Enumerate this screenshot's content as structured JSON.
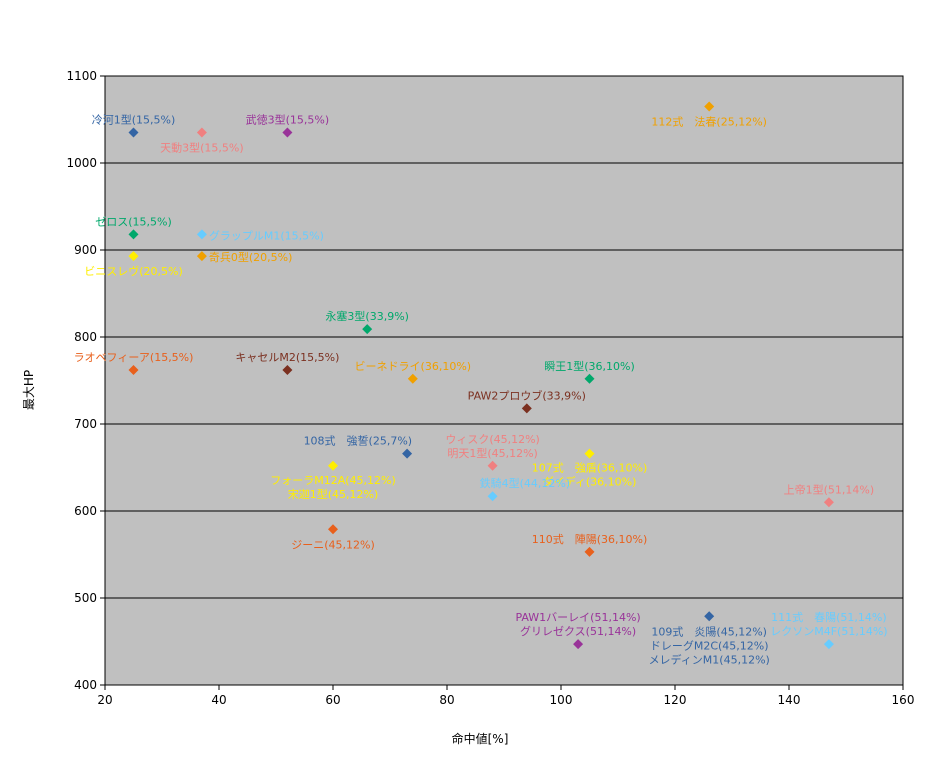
{
  "chart_data": {
    "type": "scatter",
    "title": "",
    "xlabel": "命中値[%]",
    "ylabel": "最大HP",
    "xlim": [
      20,
      160
    ],
    "ylim": [
      400,
      1100
    ],
    "xticks": [
      20,
      40,
      60,
      80,
      100,
      120,
      140,
      160
    ],
    "yticks": [
      400,
      500,
      600,
      700,
      800,
      900,
      1000,
      1100
    ],
    "xtick_labels": [
      "20",
      "40",
      "60",
      "80",
      "100",
      "120",
      "140",
      "160"
    ],
    "ytick_labels": [
      "400",
      "500",
      "600",
      "700",
      "800",
      "900",
      "1000",
      "1100"
    ],
    "grid": "horizontal",
    "background": "#c0c0c0",
    "points": [
      {
        "x": 25,
        "y": 1035,
        "color": "#3465a4",
        "labels": [
          "冷河1型(15,5%)"
        ],
        "pos": "above"
      },
      {
        "x": 37,
        "y": 1035,
        "color": "#f08080",
        "labels": [
          "天動3型(15,5%)"
        ],
        "pos": "below"
      },
      {
        "x": 52,
        "y": 1035,
        "color": "#993399",
        "labels": [
          "武徳3型(15,5%)"
        ],
        "pos": "above"
      },
      {
        "x": 126,
        "y": 1065,
        "color": "#f0a000",
        "labels": [
          "112式　法春(25,12%)"
        ],
        "pos": "below"
      },
      {
        "x": 25,
        "y": 918,
        "color": "#00a86b",
        "labels": [
          "ゼロス(15,5%)"
        ],
        "pos": "above"
      },
      {
        "x": 37,
        "y": 918,
        "color": "#66ccff",
        "labels": [
          "グラップルM1(15,5%)"
        ],
        "pos": "right"
      },
      {
        "x": 37,
        "y": 893,
        "color": "#f0a000",
        "labels": [
          "奇兵0型(20,5%)"
        ],
        "pos": "right"
      },
      {
        "x": 25,
        "y": 893,
        "color": "#ffee00",
        "labels": [
          "ビニスレヴ(20,5%)"
        ],
        "pos": "below"
      },
      {
        "x": 66,
        "y": 809,
        "color": "#00a86b",
        "labels": [
          "永塞3型(33,9%)"
        ],
        "pos": "above"
      },
      {
        "x": 25,
        "y": 762,
        "color": "#e8601c",
        "labels": [
          "ラオベフィーア(15,5%)"
        ],
        "pos": "above"
      },
      {
        "x": 52,
        "y": 762,
        "color": "#7b3020",
        "labels": [
          "キャセルM2(15,5%)"
        ],
        "pos": "above"
      },
      {
        "x": 74,
        "y": 752,
        "color": "#f0a000",
        "labels": [
          "ビーネドライ(36,10%)"
        ],
        "pos": "above"
      },
      {
        "x": 105,
        "y": 752,
        "color": "#00a86b",
        "labels": [
          "瞬王1型(36,10%)"
        ],
        "pos": "above"
      },
      {
        "x": 94,
        "y": 718,
        "color": "#7b3020",
        "labels": [
          "PAW2プロウブ(33,9%)"
        ],
        "pos": "above"
      },
      {
        "x": 73,
        "y": 666,
        "color": "#3465a4",
        "labels": [
          "108式　強誓(25,7%)"
        ],
        "pos": "aboveleft"
      },
      {
        "x": 88,
        "y": 652,
        "color": "#f08080",
        "labels": [
          "ウィスク(45,12%)",
          "明天1型(45,12%)"
        ],
        "pos": "above2"
      },
      {
        "x": 105,
        "y": 666,
        "color": "#ffee00",
        "labels": [
          "107式　強盾(36,10%)",
          "ダイディ(36,10%)"
        ],
        "pos": "below2"
      },
      {
        "x": 60,
        "y": 652,
        "color": "#ffee00",
        "labels": [
          "フォーラM12A(45,12%)",
          "宋迦1型(45,12%)"
        ],
        "pos": "below2"
      },
      {
        "x": 88,
        "y": 617,
        "color": "#66ccff",
        "labels": [
          "鉄騎4型(44,12%)"
        ],
        "pos": "aboveright"
      },
      {
        "x": 147,
        "y": 610,
        "color": "#f08080",
        "labels": [
          "上帝1型(51,14%)"
        ],
        "pos": "above"
      },
      {
        "x": 60,
        "y": 579,
        "color": "#e8601c",
        "labels": [
          "ジーニ(45,12%)"
        ],
        "pos": "below"
      },
      {
        "x": 105,
        "y": 553,
        "color": "#e8601c",
        "labels": [
          "110式　陣陽(36,10%)"
        ],
        "pos": "above"
      },
      {
        "x": 103,
        "y": 447,
        "color": "#993399",
        "labels": [
          "PAW1バーレイ(51,14%)",
          "グリレゼクス(51,14%)"
        ],
        "pos": "above2"
      },
      {
        "x": 126,
        "y": 479,
        "color": "#3465a4",
        "labels": [
          "109式　炎陽(45,12%)",
          "ドレーグM2C(45,12%)",
          "メレディンM1(45,12%)"
        ],
        "pos": "below3"
      },
      {
        "x": 147,
        "y": 447,
        "color": "#66ccff",
        "labels": [
          "111式　春陽(51,14%)",
          "レクソンM4F(51,14%)"
        ],
        "pos": "above2"
      }
    ]
  }
}
